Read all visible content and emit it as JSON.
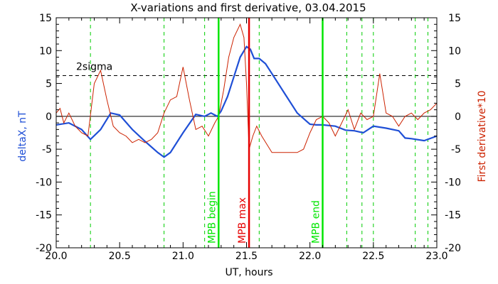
{
  "chart_data": {
    "type": "line",
    "title": "X-variations and first derivative, 03.04.2015",
    "xlabel": "UT, hours",
    "ylabel_left": "deltaX, nT",
    "ylabel_right": "First derivative*10",
    "xlim": [
      20.0,
      23.0
    ],
    "ylim": [
      -20,
      15
    ],
    "x_ticks": [
      20.0,
      20.5,
      21.0,
      21.5,
      22.0,
      22.5,
      23.0
    ],
    "x_tick_labels": [
      "20.0",
      "20.5",
      "21.0",
      "21.5",
      "22.0",
      "22.5",
      "23.0"
    ],
    "y_ticks": [
      15,
      10,
      5,
      0,
      -5,
      -10,
      -15,
      -20
    ],
    "y_tick_labels": [
      "15",
      "10",
      "5",
      "0",
      "-5",
      "-10",
      "-15",
      "-20"
    ],
    "sigma_level": 6.2,
    "sigma_label": "2sigma",
    "green_dashed_x": [
      20.27,
      20.85,
      21.17,
      21.6,
      22.29,
      22.41,
      22.5,
      22.83,
      22.93
    ],
    "markers": [
      {
        "x": 21.28,
        "label": "MPB begin",
        "color": "#00e600"
      },
      {
        "x": 21.52,
        "label": "MPB max",
        "color": "#e60000"
      },
      {
        "x": 22.1,
        "label": "MPB end",
        "color": "#00e600"
      }
    ],
    "series": [
      {
        "name": "deltaX, nT",
        "color": "#1f4fd6",
        "x": [
          20.0,
          20.1,
          20.2,
          20.27,
          20.35,
          20.43,
          20.5,
          20.6,
          20.7,
          20.8,
          20.85,
          20.9,
          21.0,
          21.1,
          21.17,
          21.22,
          21.27,
          21.3,
          21.35,
          21.4,
          21.45,
          21.5,
          21.53,
          21.56,
          21.6,
          21.65,
          21.7,
          21.8,
          21.9,
          22.0,
          22.05,
          22.1,
          22.2,
          22.28,
          22.35,
          22.42,
          22.5,
          22.6,
          22.7,
          22.75,
          22.8,
          22.9,
          23.0
        ],
        "y": [
          -1.3,
          -1.0,
          -2.0,
          -3.5,
          -2.0,
          0.5,
          0.2,
          -2.0,
          -3.8,
          -5.5,
          -6.2,
          -5.5,
          -2.5,
          0.3,
          0.0,
          0.5,
          0.0,
          0.8,
          3.0,
          6.0,
          9.0,
          10.6,
          10.2,
          8.8,
          8.8,
          8.0,
          6.5,
          3.5,
          0.5,
          -1.2,
          -1.3,
          -1.3,
          -1.5,
          -2.1,
          -2.2,
          -2.5,
          -1.5,
          -1.8,
          -2.2,
          -3.3,
          -3.4,
          -3.7,
          -3.0
        ]
      },
      {
        "name": "First derivative*10",
        "color": "#cc2200",
        "x": [
          20.0,
          20.03,
          20.06,
          20.1,
          20.15,
          20.2,
          20.25,
          20.3,
          20.35,
          20.4,
          20.45,
          20.5,
          20.55,
          20.6,
          20.65,
          20.7,
          20.75,
          20.8,
          20.85,
          20.9,
          20.95,
          21.0,
          21.05,
          21.1,
          21.15,
          21.2,
          21.25,
          21.28,
          21.32,
          21.36,
          21.4,
          21.45,
          21.48,
          21.5,
          21.52,
          21.55,
          21.58,
          21.62,
          21.7,
          21.8,
          21.9,
          21.95,
          22.0,
          22.05,
          22.1,
          22.15,
          22.2,
          22.25,
          22.3,
          22.35,
          22.4,
          22.45,
          22.5,
          22.55,
          22.6,
          22.65,
          22.7,
          22.75,
          22.8,
          22.85,
          22.9,
          22.95,
          23.0
        ],
        "y": [
          0.5,
          1.2,
          -1.0,
          0.5,
          -1.5,
          -2.5,
          -3.0,
          5.0,
          7.0,
          2.5,
          -1.5,
          -2.5,
          -3.0,
          -4.0,
          -3.5,
          -4.0,
          -3.5,
          -2.5,
          0.5,
          2.5,
          3.0,
          7.5,
          2.5,
          -2.0,
          -1.5,
          -3.0,
          -1.0,
          0.0,
          4.0,
          9.0,
          12.0,
          14.0,
          12.0,
          5.0,
          -5.0,
          -3.0,
          -1.5,
          -3.0,
          -5.5,
          -5.5,
          -5.5,
          -5.0,
          -2.5,
          -0.5,
          0.0,
          -1.0,
          -3.0,
          -1.0,
          1.0,
          -2.0,
          0.5,
          -0.5,
          0.0,
          6.5,
          0.5,
          0.0,
          -1.5,
          0.0,
          0.5,
          -0.5,
          0.5,
          1.0,
          2.0
        ]
      }
    ]
  }
}
